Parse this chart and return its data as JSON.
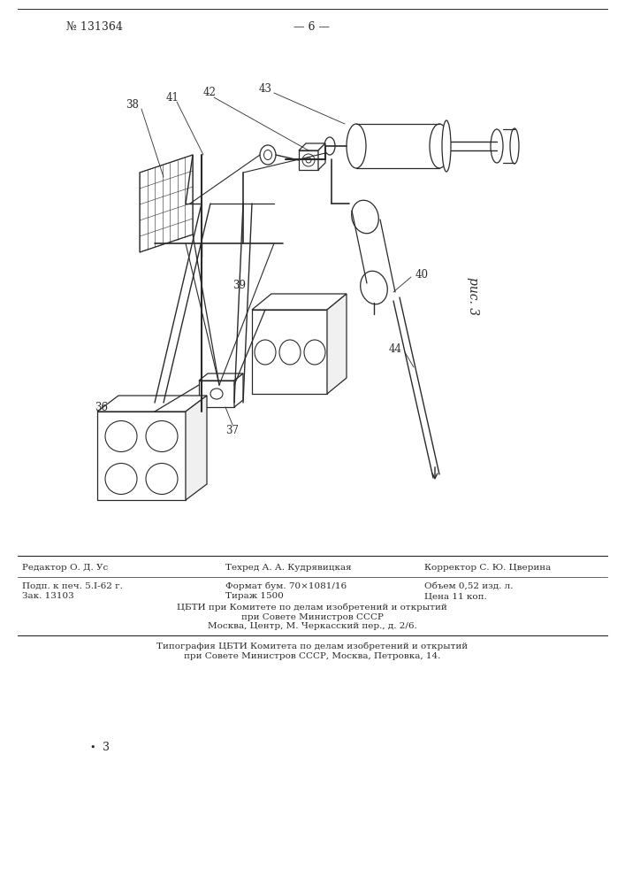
{
  "page_number_left": "№ 131364",
  "page_number_center": "— 6 —",
  "fig_label": "рис. 3",
  "footer_line1_col1": "Редактор О. Д. Ус",
  "footer_line1_col2": "Техред А. А. Кудрявицкая",
  "footer_line1_col3": "Корректор С. Ю. Цверина",
  "footer_line2_col1": "Подп. к печ. 5.І-62 г.",
  "footer_line2_col2": "Формат бум. 70×1081/16",
  "footer_line2_col3": "Объем 0,52 изд. л.",
  "footer_line3_col1": "Зак. 13103",
  "footer_line3_col2": "Тираж 1500",
  "footer_line3_col3": "Цена 11 коп.",
  "footer_line4": "ЦБТИ при Комитете по делам изобретений и открытий",
  "footer_line5": "при Совете Министров СССР",
  "footer_line6": "Москва, Центр, М. Черкасский пер., д. 2/6.",
  "footer_line7": "Типография ЦБТИ Комитета по делам изобретений и открытий",
  "footer_line8": "при Совете Министров СССР, Москва, Петровка, 14.",
  "bottom_number": "3",
  "bg_color": "#ffffff",
  "line_color": "#2a2a2a",
  "text_color": "#2a2a2a"
}
